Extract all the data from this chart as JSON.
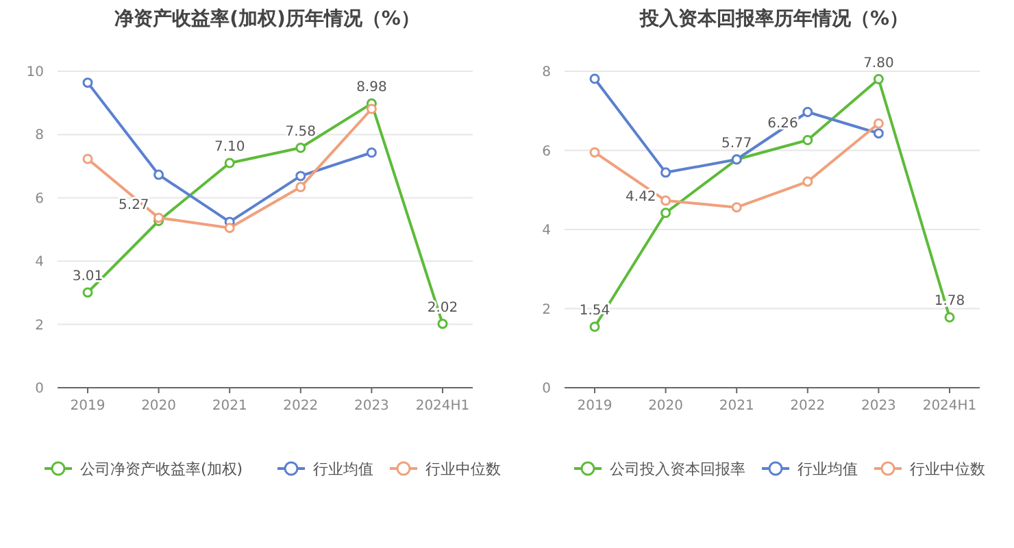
{
  "chart_data": [
    {
      "type": "line",
      "title": "净资产收益率(加权)历年情况（%）",
      "categories": [
        "2019",
        "2020",
        "2021",
        "2022",
        "2023",
        "2024H1"
      ],
      "ylim": [
        0,
        10
      ],
      "yticks": [
        0,
        2,
        4,
        6,
        8,
        10
      ],
      "grid": "y",
      "legend": "bottom",
      "marker": "circle",
      "series": [
        {
          "name": "公司净资产收益率(加权)",
          "color": "#5dbb3a",
          "values": [
            3.01,
            5.27,
            7.1,
            7.58,
            8.98,
            2.02
          ],
          "value_labels": [
            "3.01",
            "5.27",
            "7.10",
            "7.58",
            "8.98",
            "2.02"
          ]
        },
        {
          "name": "行业均值",
          "color": "#5b80d0",
          "values": [
            9.64,
            6.73,
            5.24,
            6.69,
            7.43,
            null
          ]
        },
        {
          "name": "行业中位数",
          "color": "#f0a07c",
          "values": [
            7.23,
            5.37,
            5.05,
            6.34,
            8.81,
            null
          ]
        }
      ]
    },
    {
      "type": "line",
      "title": "投入资本回报率历年情况（%）",
      "categories": [
        "2019",
        "2020",
        "2021",
        "2022",
        "2023",
        "2024H1"
      ],
      "ylim": [
        0,
        8
      ],
      "yticks": [
        0,
        2,
        4,
        6,
        8
      ],
      "grid": "y",
      "legend": "bottom",
      "marker": "circle",
      "series": [
        {
          "name": "公司投入资本回报率",
          "color": "#5dbb3a",
          "values": [
            1.54,
            4.42,
            5.77,
            6.26,
            7.8,
            1.78
          ],
          "value_labels": [
            "1.54",
            "4.42",
            "5.77",
            "6.26",
            "7.80",
            "1.78"
          ]
        },
        {
          "name": "行业均值",
          "color": "#5b80d0",
          "values": [
            7.81,
            5.44,
            5.77,
            6.97,
            6.43,
            null
          ]
        },
        {
          "name": "行业中位数",
          "color": "#f0a07c",
          "values": [
            5.95,
            4.73,
            4.56,
            5.21,
            6.68,
            null
          ]
        }
      ]
    }
  ]
}
